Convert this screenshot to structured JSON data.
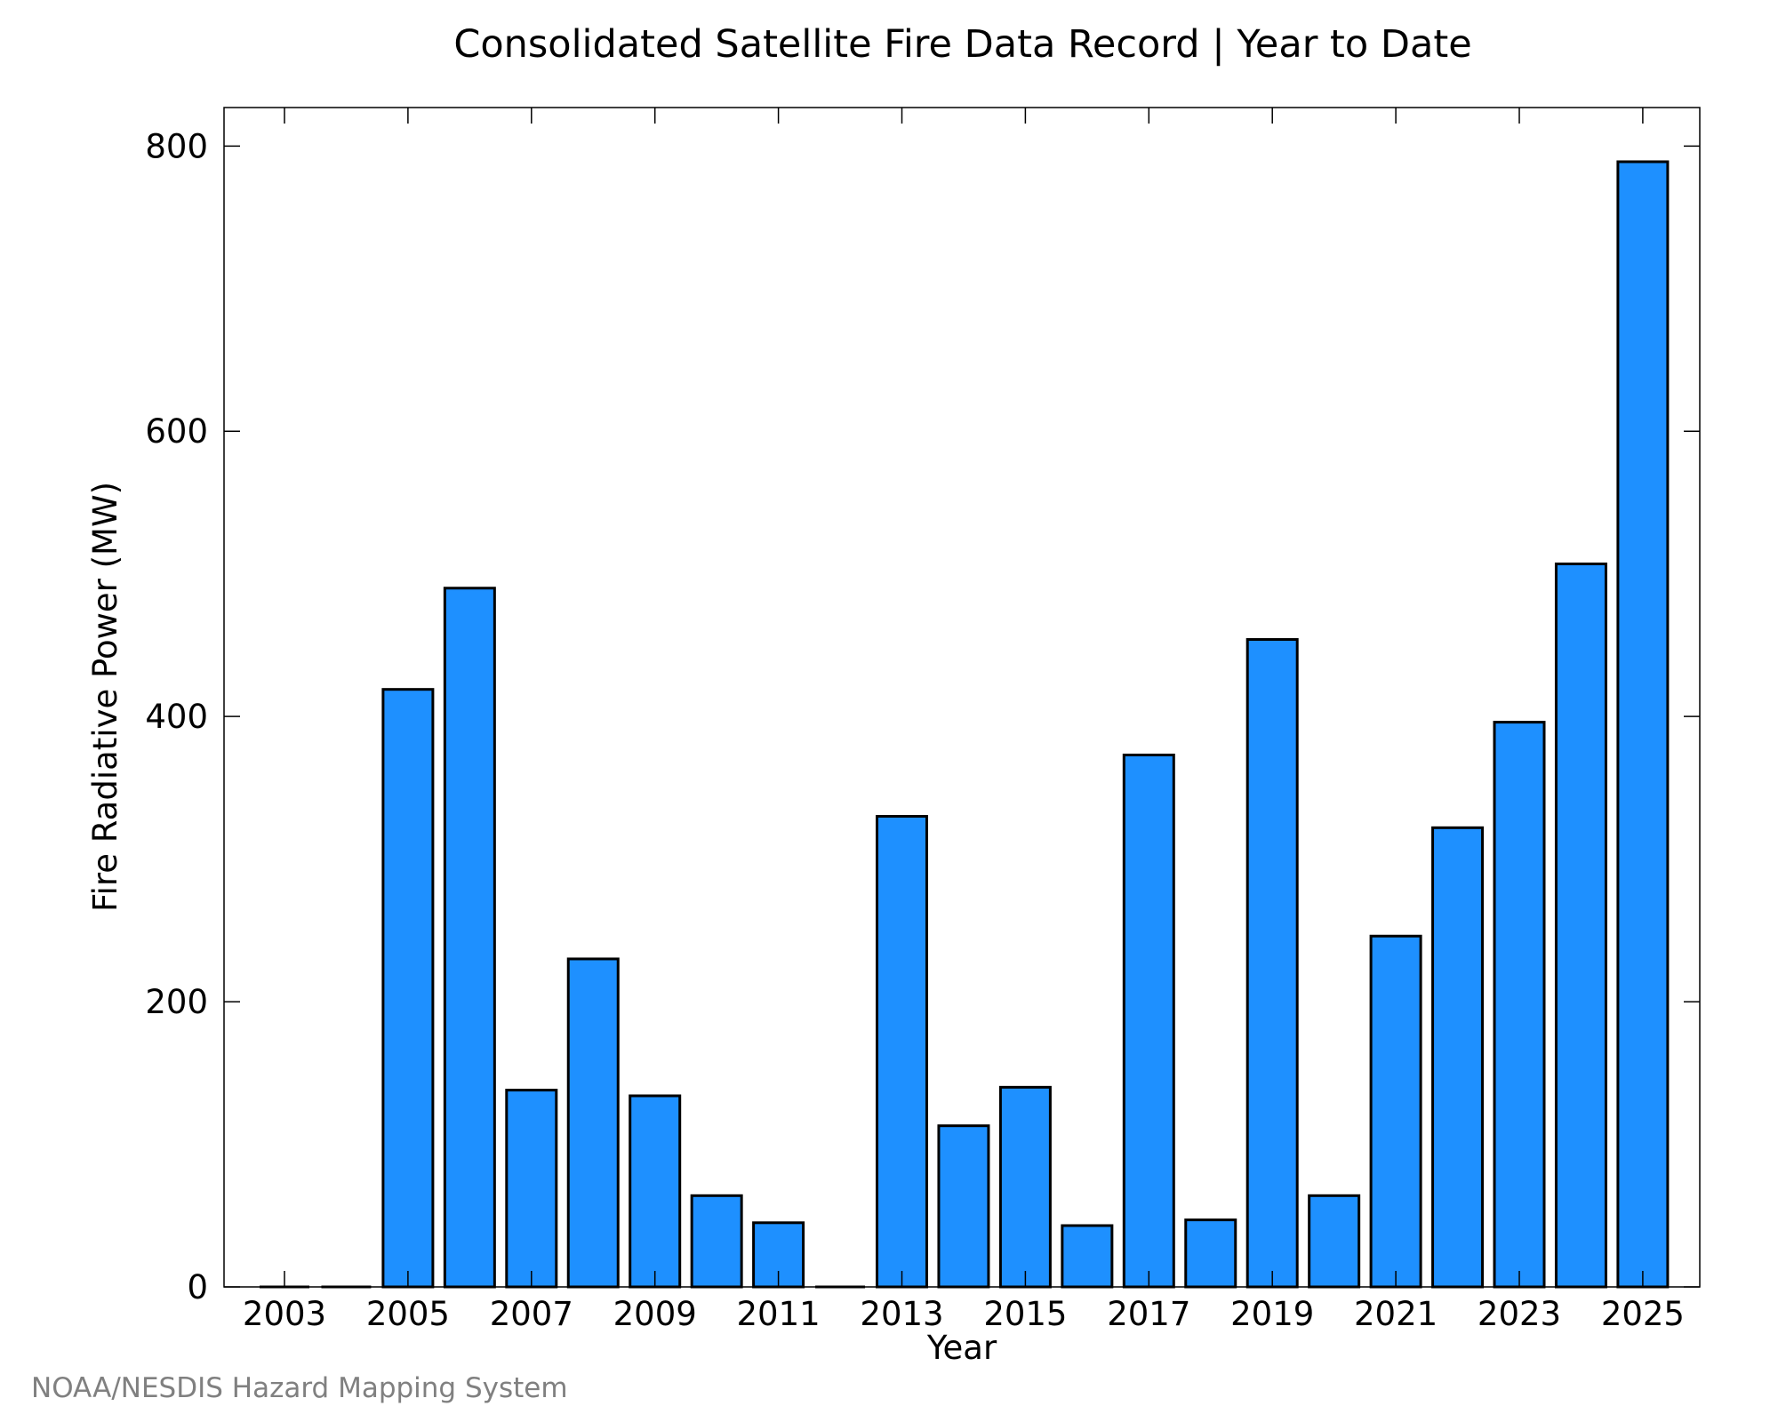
{
  "chart_data": {
    "type": "bar",
    "title": "Consolidated Satellite Fire Data Record | Year to Date",
    "xlabel": "Year",
    "ylabel": "Fire Radiative Power (MW)",
    "categories": [
      2003,
      2004,
      2005,
      2006,
      2007,
      2008,
      2009,
      2010,
      2011,
      2012,
      2013,
      2014,
      2015,
      2016,
      2017,
      2018,
      2019,
      2020,
      2021,
      2022,
      2023,
      2024,
      2025
    ],
    "values": [
      0,
      0,
      419,
      490,
      138,
      230,
      134,
      64,
      45,
      0,
      330,
      113,
      140,
      43,
      373,
      47,
      454,
      64,
      246,
      322,
      396,
      507,
      789
    ],
    "ylim": [
      0,
      827
    ],
    "yticks": [
      0,
      200,
      400,
      600,
      800
    ],
    "xticks": [
      2003,
      2005,
      2007,
      2009,
      2011,
      2013,
      2015,
      2017,
      2019,
      2021,
      2023,
      2025
    ],
    "bar_color": "#1e90ff",
    "edge_color": "#000000",
    "grid": false,
    "legend": "none"
  },
  "credit": "NOAA/NESDIS Hazard Mapping System"
}
